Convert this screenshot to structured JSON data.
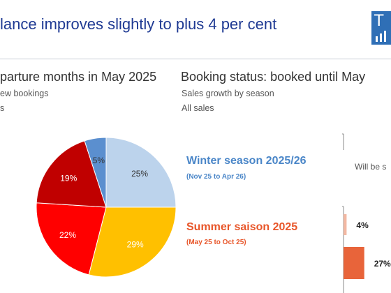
{
  "header": {
    "title": "lance improves slightly to plus 4 per cent",
    "logo_letter": "T"
  },
  "left_panel": {
    "heading": "parture months in May 2025",
    "subheading_1": "ew bookings",
    "subheading_2": "s"
  },
  "right_panel": {
    "heading": "Booking status: booked until May",
    "subheading_1": "Sales growth by season",
    "subheading_2": "All sales",
    "side_label": "Will be s"
  },
  "seasons": {
    "winter_label": "Winter season 2025/26",
    "winter_range": "(Nov 25 to Apr 26)",
    "summer_label": "Summer saison 2025",
    "summer_range": "(May 25 to Oct 25)"
  },
  "colors": {
    "title": "#1f3a93",
    "winter": "#4a86c8",
    "summer": "#e8562a",
    "bar": "#e8643a"
  },
  "chart_data": [
    {
      "type": "pie",
      "title": "",
      "slices": [
        {
          "label": "25%",
          "value": 25,
          "color": "#bcd3ec"
        },
        {
          "label": "29%",
          "value": 29,
          "color": "#ffc000"
        },
        {
          "label": "22%",
          "value": 22,
          "color": "#ff0000"
        },
        {
          "label": "19%",
          "value": 19,
          "color": "#c00000"
        },
        {
          "label": "5%",
          "value": 5,
          "color": "#5b8fcf"
        }
      ]
    },
    {
      "type": "bar",
      "orientation": "horizontal",
      "categories": [
        "Summer saison 2025",
        ""
      ],
      "values": [
        4,
        27
      ],
      "value_labels": [
        "4%",
        "27%"
      ]
    }
  ]
}
